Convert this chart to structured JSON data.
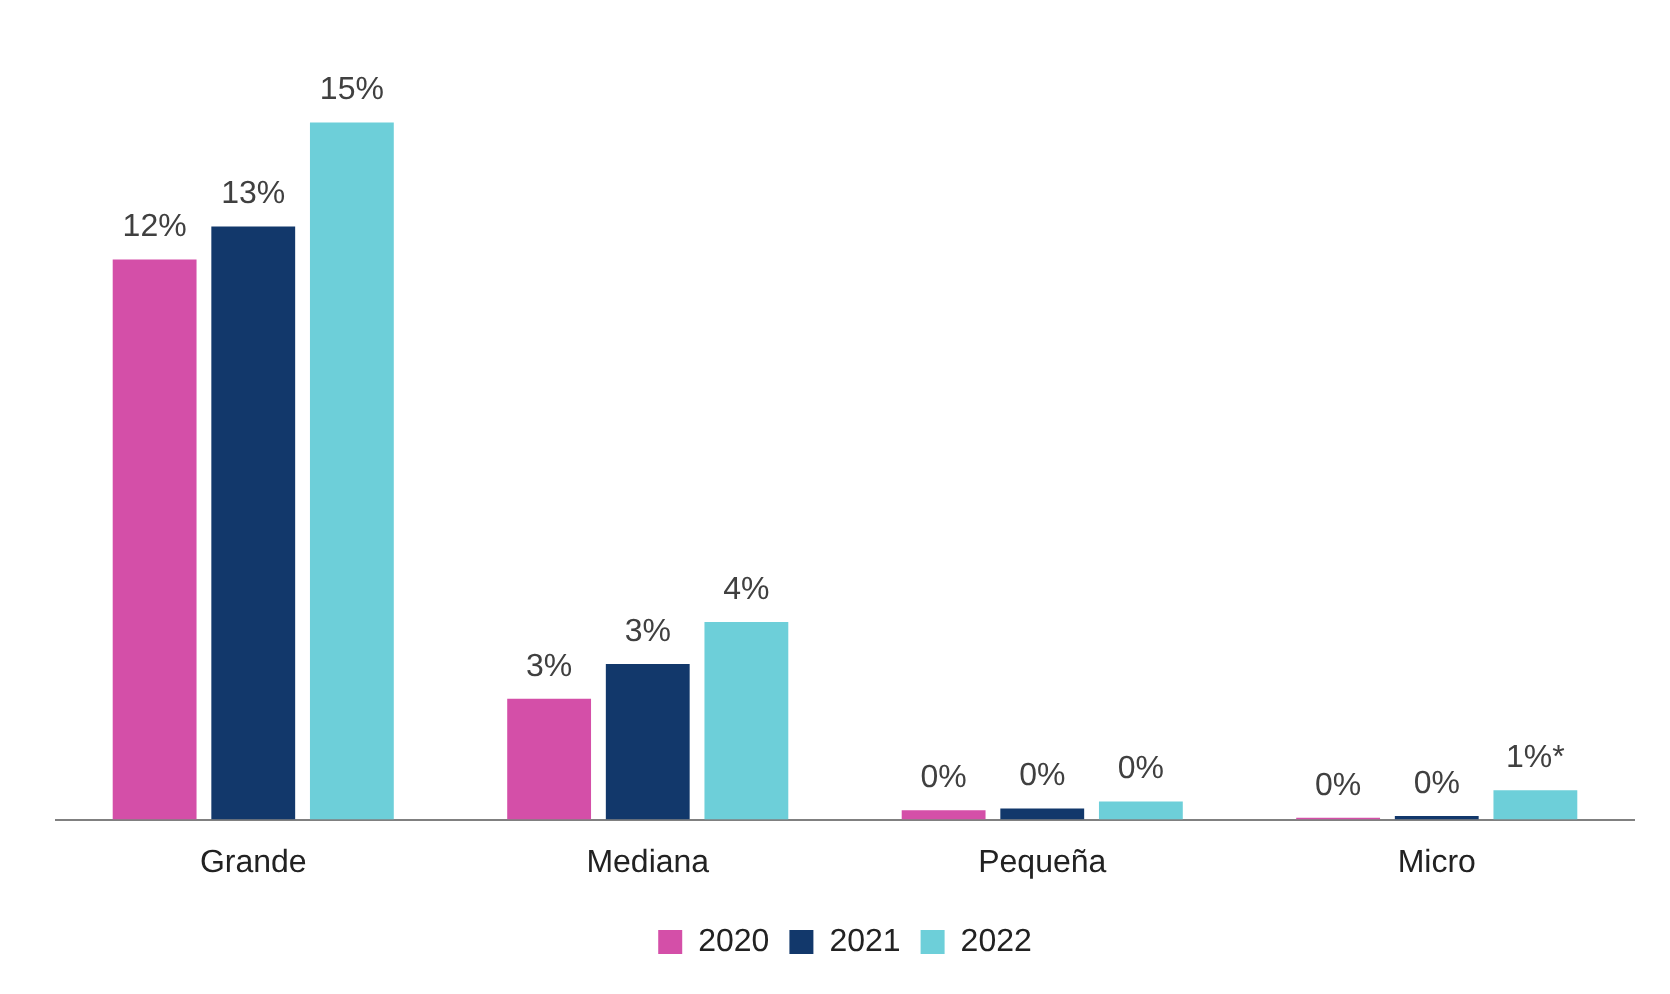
{
  "chart_data": {
    "type": "bar",
    "categories": [
      "Grande",
      "Mediana",
      "Pequeña",
      "Micro"
    ],
    "series": [
      {
        "name": "2020",
        "color": "#d44fa8",
        "values": [
          12.05,
          2.6,
          0.2,
          0.04
        ],
        "value_labels": [
          "12%",
          "3%",
          "0%",
          "0%"
        ]
      },
      {
        "name": "2021",
        "color": "#12386b",
        "values": [
          12.76,
          3.35,
          0.24,
          0.08
        ],
        "value_labels": [
          "13%",
          "3%",
          "0%",
          "0%"
        ]
      },
      {
        "name": "2022",
        "color": "#6dcfd9",
        "values": [
          15,
          4.25,
          0.39,
          0.63
        ],
        "value_labels": [
          "15%",
          "4%",
          "0%",
          "1%*"
        ]
      }
    ],
    "legend": "bottom",
    "grid": false
  }
}
